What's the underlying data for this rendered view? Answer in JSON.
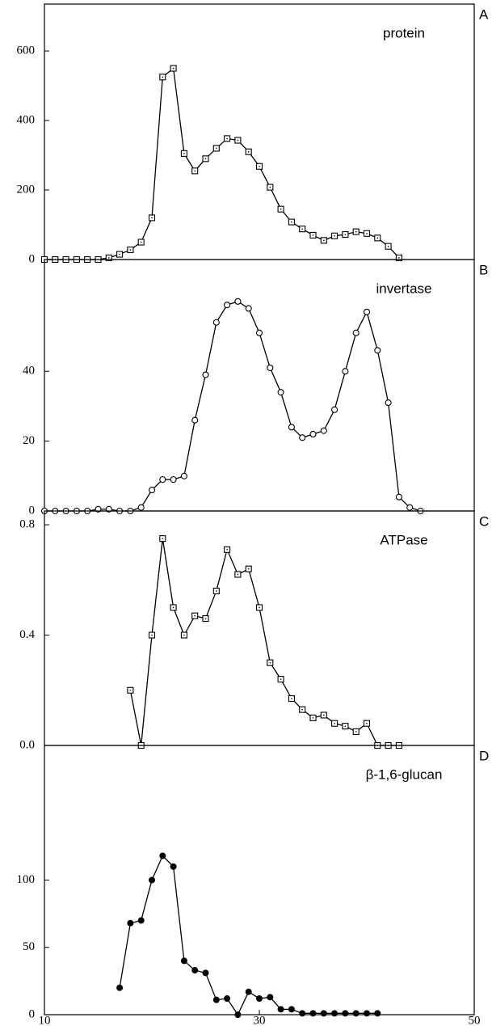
{
  "chart_data": [
    {
      "type": "line",
      "panel_label": "A",
      "title": "protein",
      "marker": "square",
      "color": "#000000",
      "x": [
        10,
        11,
        12,
        13,
        14,
        15,
        16,
        17,
        18,
        19,
        20,
        21,
        22,
        23,
        24,
        25,
        26,
        27,
        28,
        29,
        30,
        31,
        32,
        33,
        34,
        35,
        36,
        37,
        38,
        39,
        40,
        41,
        42,
        43
      ],
      "values": [
        0,
        0,
        0,
        0,
        0,
        0,
        5,
        15,
        28,
        50,
        120,
        525,
        550,
        305,
        255,
        290,
        320,
        348,
        343,
        310,
        268,
        208,
        145,
        108,
        88,
        70,
        55,
        68,
        72,
        80,
        75,
        62,
        38,
        5
      ],
      "xlim": [
        10,
        50
      ],
      "ylim": [
        0,
        735
      ],
      "yticks": [
        0,
        200,
        400,
        600
      ]
    },
    {
      "type": "line",
      "panel_label": "B",
      "title": "invertase",
      "marker": "circle",
      "color": "#000000",
      "x": [
        10,
        11,
        12,
        13,
        14,
        15,
        16,
        17,
        18,
        19,
        20,
        21,
        22,
        23,
        24,
        25,
        26,
        27,
        28,
        29,
        30,
        31,
        32,
        33,
        34,
        35,
        36,
        37,
        38,
        39,
        40,
        41,
        42,
        43,
        44,
        45
      ],
      "values": [
        0,
        0,
        0,
        0,
        0,
        0.5,
        0.5,
        0,
        0,
        1,
        6,
        9,
        9,
        10,
        26,
        39,
        54,
        59,
        60,
        58,
        51,
        41,
        34,
        24,
        21,
        22,
        23,
        29,
        40,
        51,
        57,
        46,
        31,
        4,
        1,
        0
      ],
      "xlim": [
        10,
        50
      ],
      "ylim": [
        0,
        72
      ],
      "yticks": [
        0,
        20,
        40
      ]
    },
    {
      "type": "line",
      "panel_label": "C",
      "title": "ATPase",
      "marker": "square",
      "color": "#000000",
      "x": [
        18,
        19,
        20,
        21,
        22,
        23,
        24,
        25,
        26,
        27,
        28,
        29,
        30,
        31,
        32,
        33,
        34,
        35,
        36,
        37,
        38,
        39,
        40,
        41,
        42,
        43
      ],
      "values": [
        0.2,
        0,
        0.4,
        0.75,
        0.5,
        0.4,
        0.47,
        0.46,
        0.56,
        0.71,
        0.62,
        0.64,
        0.5,
        0.3,
        0.24,
        0.17,
        0.13,
        0.1,
        0.11,
        0.08,
        0.07,
        0.05,
        0.08,
        0,
        0,
        0
      ],
      "xlim": [
        10,
        50
      ],
      "ylim": [
        0,
        0.85
      ],
      "yticks": [
        {
          "value": 0,
          "label": "0.0"
        },
        0.4,
        0.8
      ]
    },
    {
      "type": "line",
      "panel_label": "D",
      "title": "β-1,6-glucan",
      "marker": "filled-circle",
      "color": "#000000",
      "x": [
        17,
        18,
        19,
        20,
        21,
        22,
        23,
        24,
        25,
        26,
        27,
        28,
        29,
        30,
        31,
        32,
        33,
        34,
        35,
        36,
        37,
        38,
        39,
        40,
        41
      ],
      "values": [
        20,
        68,
        70,
        100,
        118,
        110,
        40,
        33,
        31,
        11,
        12,
        0,
        17,
        12,
        13,
        4,
        4,
        1,
        1,
        1,
        1,
        1,
        1,
        1,
        1
      ],
      "xlim": [
        10,
        50
      ],
      "ylim": [
        0,
        200
      ],
      "yticks": [
        0,
        50,
        100
      ],
      "xticks": [
        10,
        30,
        50
      ]
    }
  ]
}
